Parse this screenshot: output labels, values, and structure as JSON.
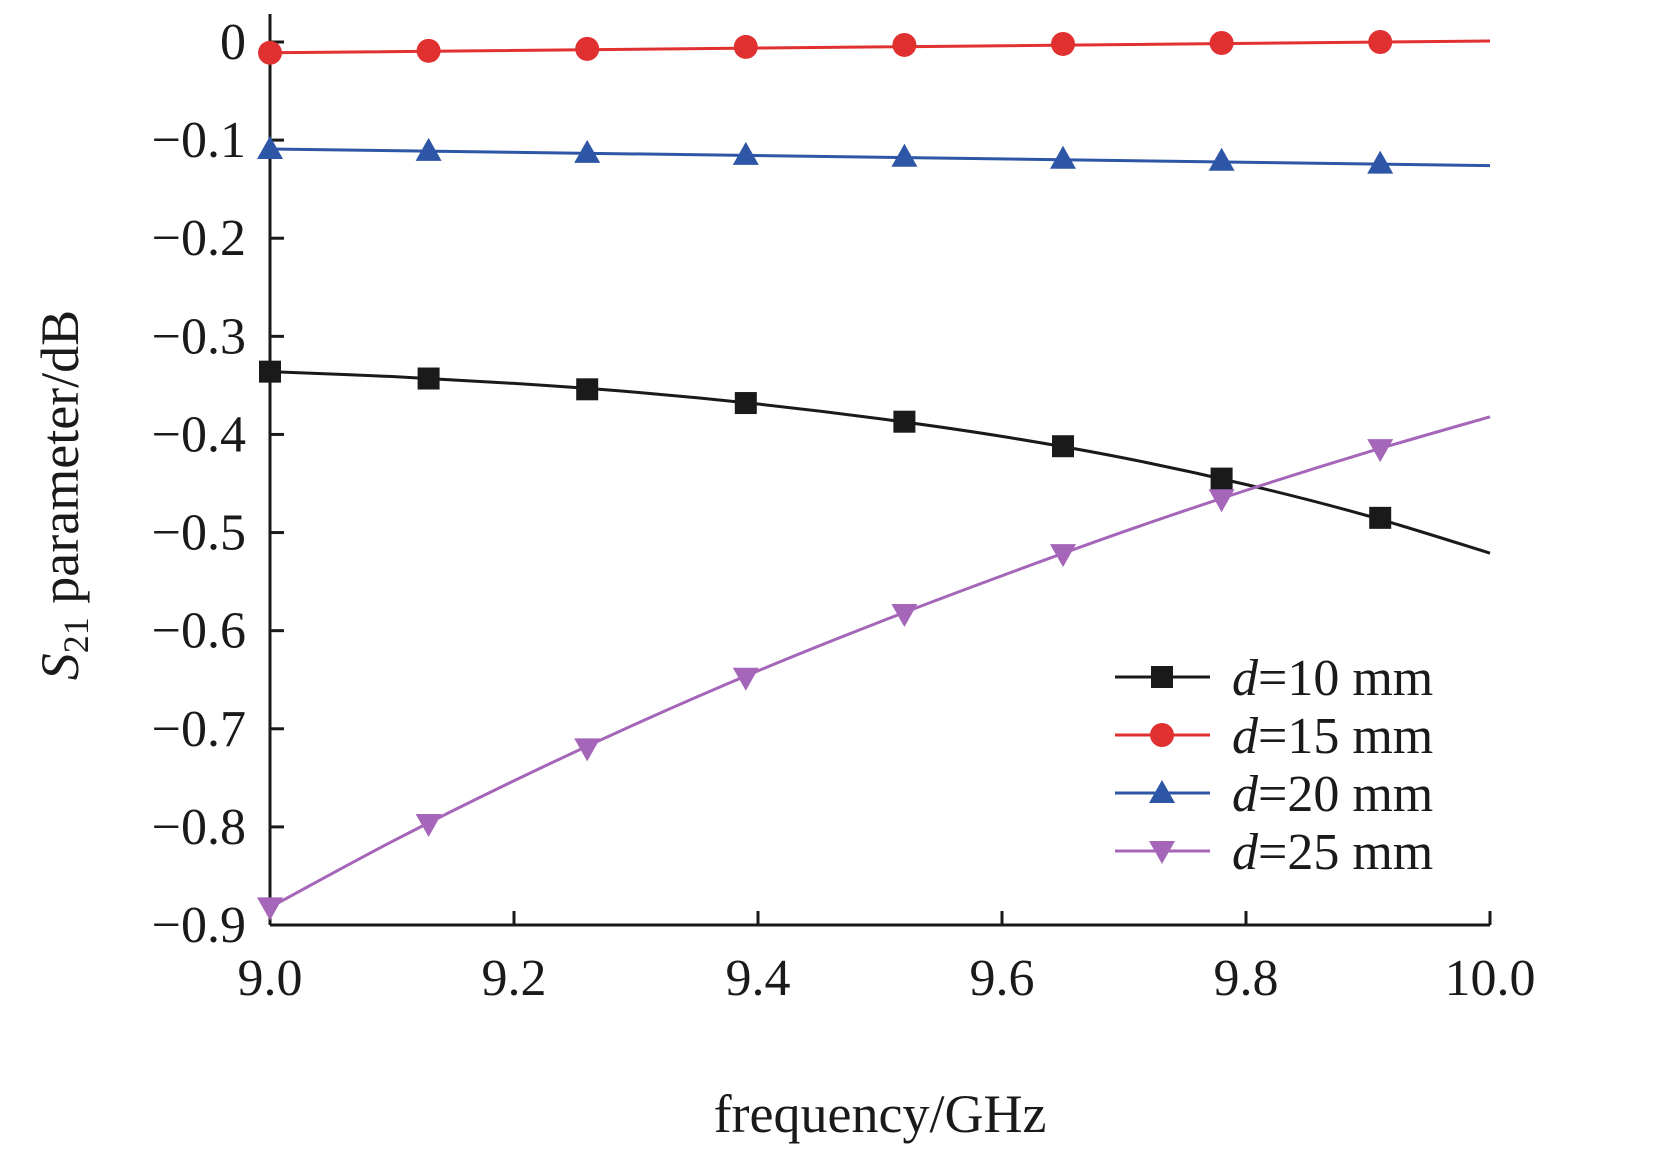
{
  "chart_data": {
    "type": "line",
    "xlabel": "frequency/GHz",
    "ylabel": {
      "symbol": "S",
      "subscript": "21",
      "text": " parameter/dB"
    },
    "xlim": [
      9.0,
      10.0
    ],
    "ylim": [
      -0.9,
      0.0
    ],
    "x_ticks": [
      "9.0",
      "9.2",
      "9.4",
      "9.6",
      "9.8",
      "10.0"
    ],
    "y_ticks": [
      "0",
      "−0.1",
      "−0.2",
      "−0.3",
      "−0.4",
      "−0.5",
      "−0.6",
      "−0.7",
      "−0.8",
      "−0.9"
    ],
    "legend_position": "bottom-right",
    "series": [
      {
        "name": "d=10 mm",
        "name_var": "d",
        "name_rest": "=10 mm",
        "color": "#1a1a1a",
        "marker": "square",
        "x": [
          9.0,
          9.13,
          9.26,
          9.39,
          9.52,
          9.65,
          9.78,
          9.91
        ],
        "y": [
          -0.336,
          -0.343,
          -0.354,
          -0.368,
          -0.387,
          -0.412,
          -0.445,
          -0.485
        ],
        "curve_x": [
          9.0,
          9.1,
          9.2,
          9.3,
          9.4,
          9.5,
          9.6,
          9.7,
          9.8,
          9.9,
          10.0
        ],
        "curve_y": [
          -0.336,
          -0.341,
          -0.348,
          -0.357,
          -0.369,
          -0.384,
          -0.402,
          -0.424,
          -0.451,
          -0.483,
          -0.521
        ]
      },
      {
        "name": "d=15 mm",
        "name_var": "d",
        "name_rest": "=15 mm",
        "color": "#e03030",
        "marker": "circle",
        "x": [
          9.0,
          9.13,
          9.26,
          9.39,
          9.52,
          9.65,
          9.78,
          9.91
        ],
        "y": [
          -0.011,
          -0.009,
          -0.007,
          -0.005,
          -0.003,
          -0.002,
          -0.001,
          0.0
        ],
        "curve_x": [
          9.0,
          10.0
        ],
        "curve_y": [
          -0.011,
          0.001
        ]
      },
      {
        "name": "d=20 mm",
        "name_var": "d",
        "name_rest": "=20 mm",
        "color": "#2e56a6",
        "marker": "triangle-up",
        "x": [
          9.0,
          9.13,
          9.26,
          9.39,
          9.52,
          9.65,
          9.78,
          9.91
        ],
        "y": [
          -0.109,
          -0.111,
          -0.113,
          -0.115,
          -0.117,
          -0.119,
          -0.121,
          -0.124
        ],
        "curve_x": [
          9.0,
          10.0
        ],
        "curve_y": [
          -0.109,
          -0.126
        ]
      },
      {
        "name": "d=25 mm",
        "name_var": "d",
        "name_rest": "=25 mm",
        "color": "#a565b8",
        "marker": "triangle-down",
        "x": [
          9.0,
          9.13,
          9.26,
          9.39,
          9.52,
          9.65,
          9.78,
          9.91
        ],
        "y": [
          -0.882,
          -0.797,
          -0.72,
          -0.648,
          -0.583,
          -0.522,
          -0.466,
          -0.415
        ],
        "curve_x": [
          9.0,
          9.1,
          9.2,
          9.3,
          9.4,
          9.5,
          9.6,
          9.7,
          9.8,
          9.9,
          10.0
        ],
        "curve_y": [
          -0.882,
          -0.815,
          -0.753,
          -0.695,
          -0.641,
          -0.591,
          -0.544,
          -0.499,
          -0.457,
          -0.418,
          -0.382
        ]
      }
    ]
  }
}
